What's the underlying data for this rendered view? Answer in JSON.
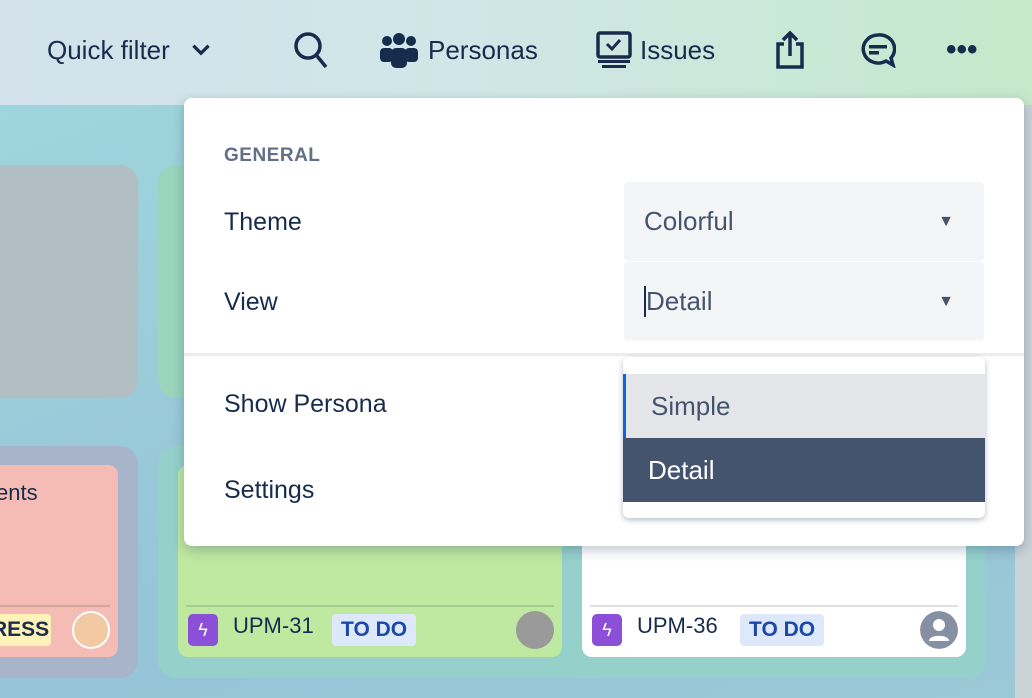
{
  "toolbar": {
    "quick_filter": "Quick filter",
    "personas": "Personas",
    "issues": "Issues",
    "icons": [
      "chevron-down-icon",
      "search-icon",
      "people-icon",
      "monitor-check-icon",
      "share-icon",
      "comment-icon",
      "more-icon"
    ]
  },
  "cards": [
    {
      "title_fragment": "ents",
      "status": "RESS",
      "status_color": "#fdf2b8",
      "bg": "#f5bcb5"
    },
    {
      "key": "UPM-31",
      "status": "TO DO",
      "bg": "#bfe8a1"
    },
    {
      "key": "UPM-36",
      "status": "TO DO",
      "bg": "#ffffff"
    }
  ],
  "popup": {
    "section": "GENERAL",
    "theme_label": "Theme",
    "theme_value": "Colorful",
    "view_label": "View",
    "view_value": "Detail",
    "show_persona": "Show Persona",
    "settings": "Settings",
    "options": [
      {
        "label": "Simple"
      },
      {
        "label": "Detail",
        "selected": true
      }
    ]
  },
  "colors": {
    "accent": "#0c66e4",
    "selected_option": "#44546f",
    "text": "#172b4d"
  }
}
